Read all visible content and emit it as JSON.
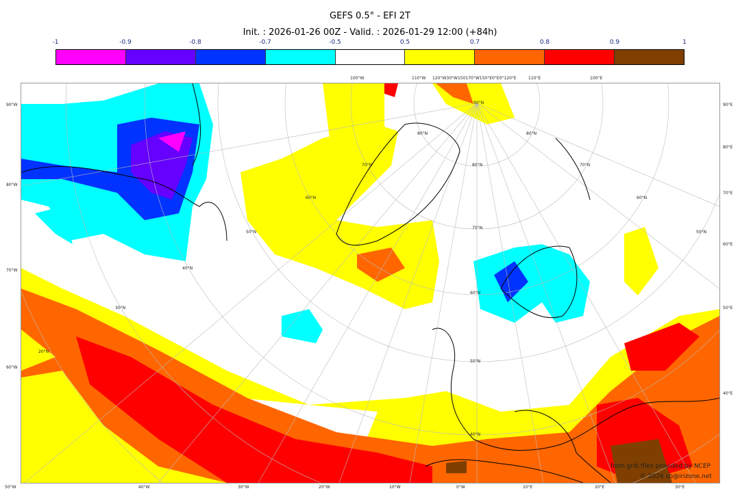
{
  "title": "GEFS 0.5° - EFI 2T",
  "subtitle": "Init. : 2026-01-26 00Z - Valid. : 2026-01-29 12:00 (+84h)",
  "colorbar": {
    "ticks": [
      "-1",
      "-0.9",
      "-0.8",
      "-0.7",
      "-0.5",
      "0.5",
      "0.7",
      "0.8",
      "0.9",
      "1"
    ],
    "colors": [
      "#ff00ff",
      "#6600ff",
      "#0033ff",
      "#00ffff",
      "#ffffff",
      "#ffff00",
      "#ff6600",
      "#ff0000",
      "#7f3f00"
    ]
  },
  "map": {
    "left_labels": [
      "90°W",
      "80°W",
      "70°W",
      "60°W"
    ],
    "right_labels": [
      "90°E",
      "80°E",
      "70°E",
      "60°E",
      "50°E",
      "40°E"
    ],
    "bottom_labels": [
      "50°W",
      "40°W",
      "30°W",
      "20°W",
      "10°W",
      "0°W",
      "10°E",
      "20°E",
      "30°E"
    ],
    "top_labels": [
      "100°W",
      "110°W",
      "120°W30°W150170°W150°E0°E0°120°E",
      "110°E",
      "100°E"
    ],
    "lat_labels": [
      "90°N",
      "80°N",
      "70°N",
      "60°N",
      "50°N",
      "40°N",
      "70°N",
      "60°N",
      "50°N",
      "40°N",
      "30°N",
      "20°N",
      "80°N",
      "80°N",
      "70°N",
      "60°N",
      "50°N"
    ]
  },
  "credits": {
    "source": "from grib files provided by NCEP",
    "copyright": "© 2026 sb@irizone.net"
  }
}
